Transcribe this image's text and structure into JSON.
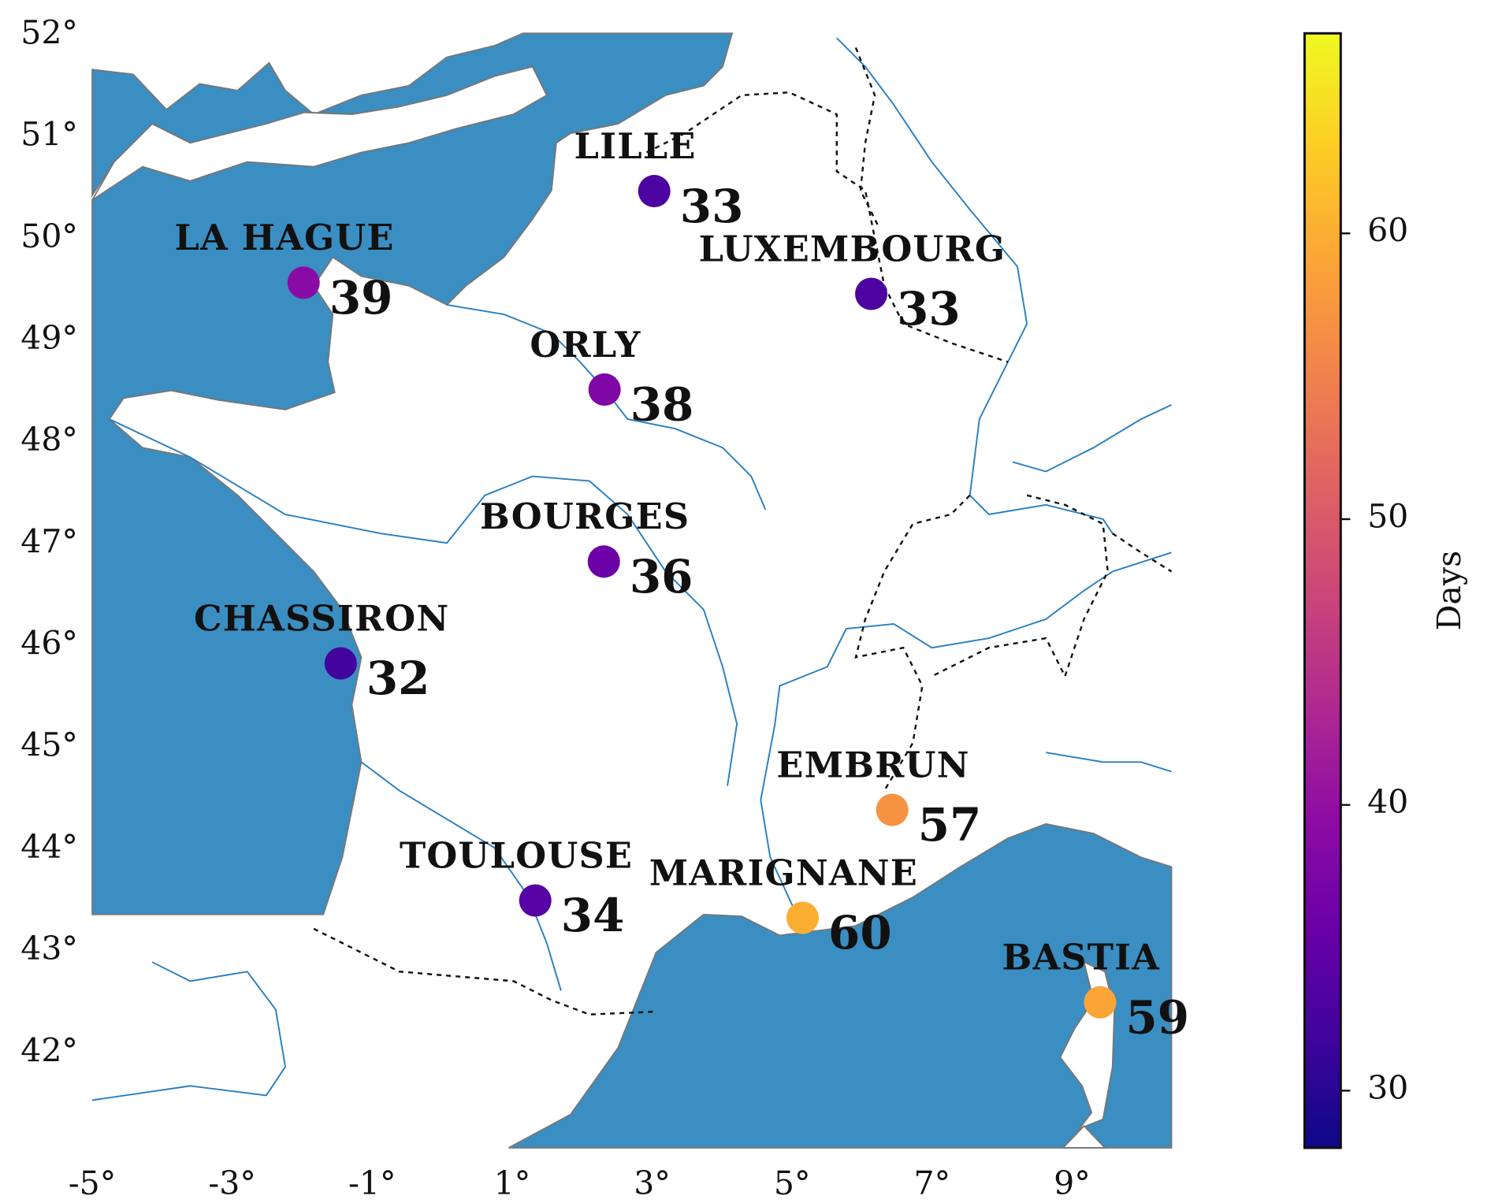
{
  "chart_data": {
    "type": "scatter",
    "labels": [
      "LILLE",
      "LUXEMBOURG",
      "LA HAGUE",
      "ORLY",
      "BOURGES",
      "CHASSIRON",
      "EMBRUN",
      "TOULOUSE",
      "MARIGNANE",
      "BASTIA"
    ],
    "x": [
      3.03,
      6.13,
      -1.98,
      2.32,
      2.31,
      -1.45,
      6.43,
      1.33,
      5.15,
      9.4
    ],
    "y": [
      50.47,
      49.46,
      49.57,
      48.52,
      46.83,
      45.83,
      44.39,
      43.5,
      43.33,
      42.5
    ],
    "values": [
      33,
      33,
      39,
      38,
      36,
      32,
      57,
      34,
      60,
      59
    ],
    "xlim": [
      -5,
      10.42
    ],
    "ylim": [
      41.07,
      52.02
    ],
    "xticks": [
      {
        "value": -5,
        "label": "-5°"
      },
      {
        "value": -3,
        "label": "-3°"
      },
      {
        "value": -1,
        "label": "-1°"
      },
      {
        "value": 1,
        "label": "1°"
      },
      {
        "value": 3,
        "label": "3°"
      },
      {
        "value": 5,
        "label": "5°"
      },
      {
        "value": 7,
        "label": "7°"
      },
      {
        "value": 9,
        "label": "9°"
      }
    ],
    "yticks": [
      {
        "value": 42,
        "label": "42°"
      },
      {
        "value": 43,
        "label": "43°"
      },
      {
        "value": 44,
        "label": "44°"
      },
      {
        "value": 45,
        "label": "45°"
      },
      {
        "value": 46,
        "label": "46°"
      },
      {
        "value": 47,
        "label": "47°"
      },
      {
        "value": 48,
        "label": "48°"
      },
      {
        "value": 49,
        "label": "49°"
      },
      {
        "value": 50,
        "label": "50°"
      },
      {
        "value": 51,
        "label": "51°"
      },
      {
        "value": 52,
        "label": "52°"
      }
    ],
    "colormap": "plasma",
    "clim": [
      28,
      67
    ],
    "cticks": [
      30,
      40,
      50,
      60
    ],
    "colorbar_label": "Days"
  }
}
